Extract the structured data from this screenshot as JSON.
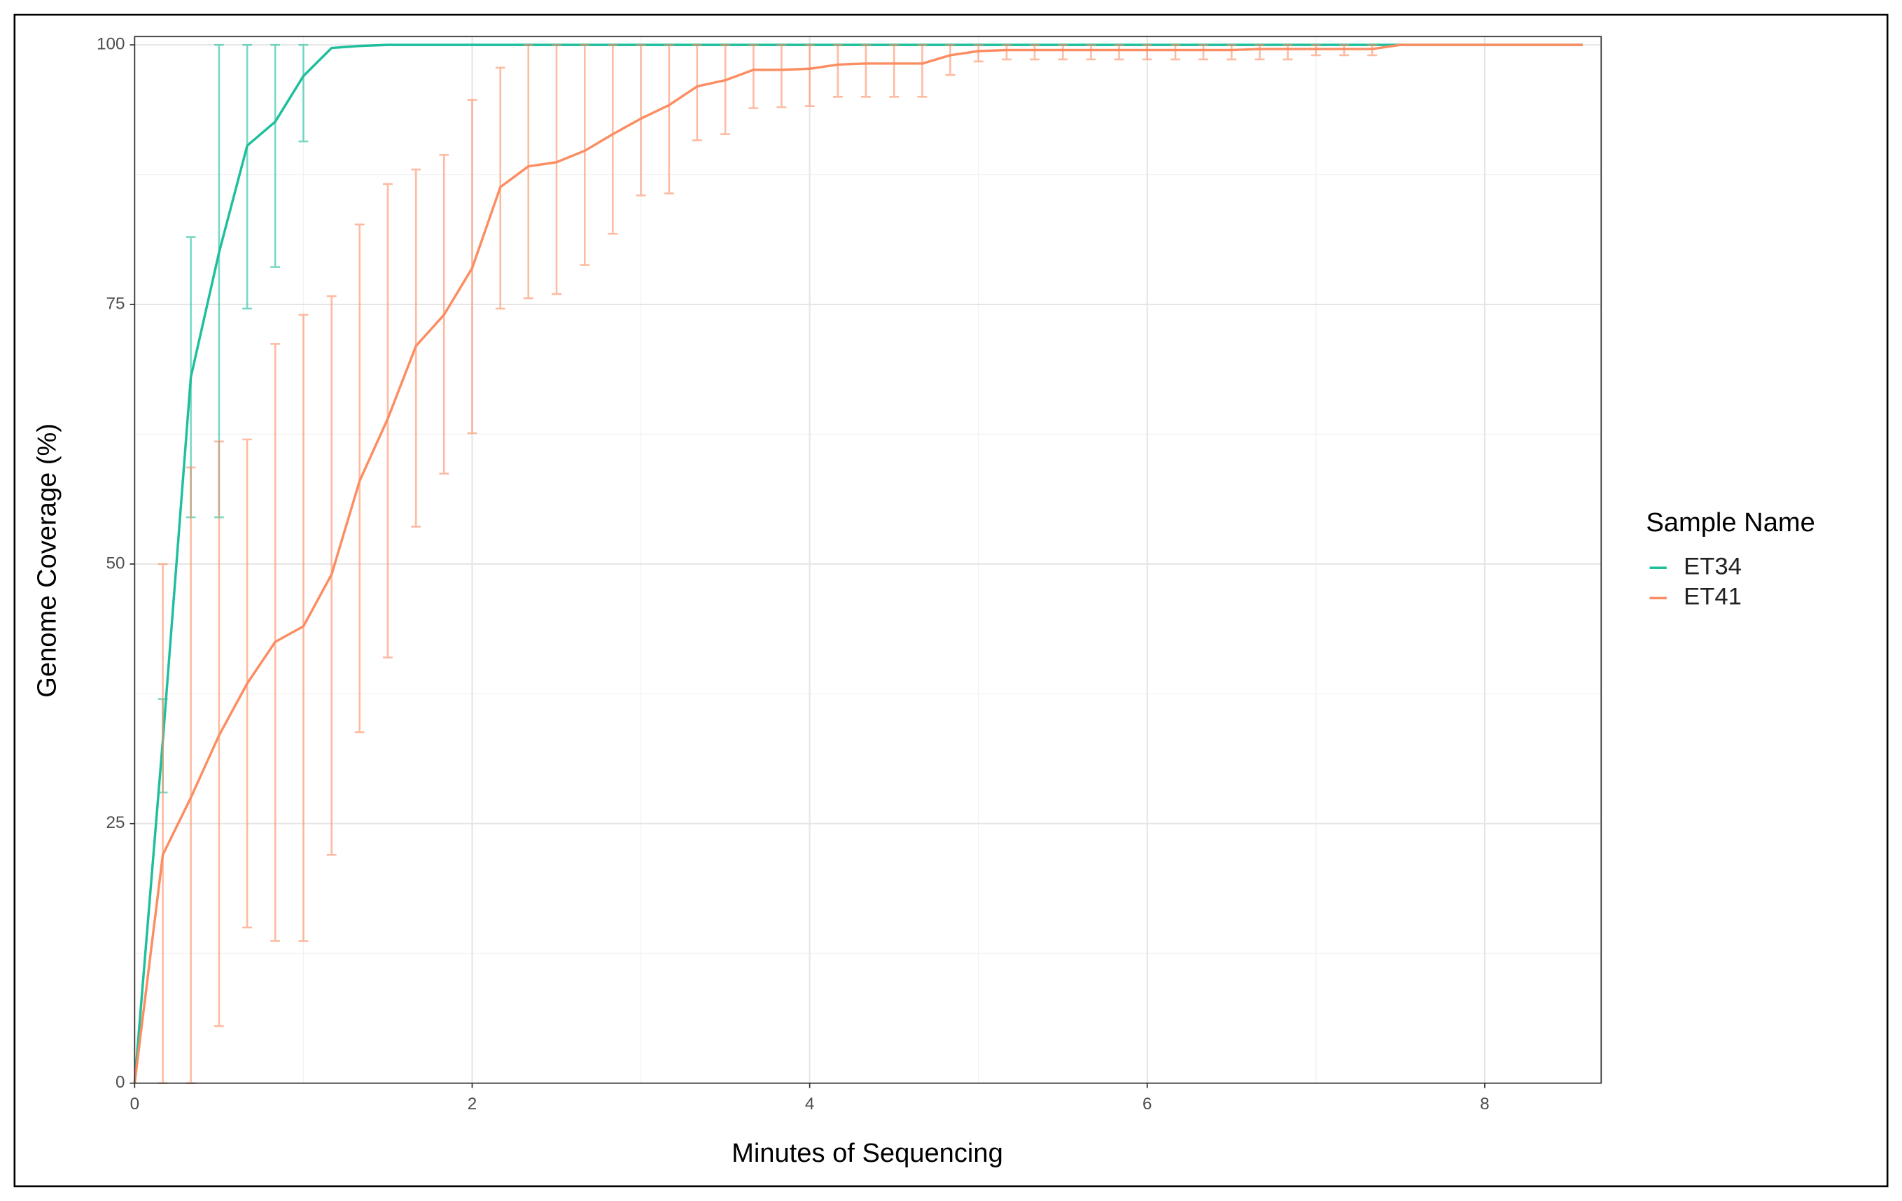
{
  "chart_data": {
    "type": "line",
    "x_label": "Minutes of Sequencing",
    "y_label": "Genome Coverage (%)",
    "legend_title": "Sample Name",
    "legend": "right",
    "grid": true,
    "xlim": [
      0,
      8.69
    ],
    "ylim": [
      0,
      100.8
    ],
    "xticks": [
      0,
      2,
      4,
      6,
      8
    ],
    "yticks": [
      0,
      25,
      50,
      75,
      100
    ],
    "x": [
      0,
      0.167,
      0.333,
      0.5,
      0.667,
      0.833,
      1,
      1.167,
      1.333,
      1.5,
      1.667,
      1.833,
      2,
      2.167,
      2.333,
      2.5,
      2.667,
      2.833,
      3,
      3.167,
      3.333,
      3.5,
      3.667,
      3.833,
      4,
      4.167,
      4.333,
      4.5,
      4.667,
      4.833,
      5,
      5.167,
      5.333,
      5.5,
      5.667,
      5.833,
      6,
      6.167,
      6.333,
      6.5,
      6.667,
      6.833,
      7,
      7.167,
      7.333,
      7.5,
      7.667,
      7.833,
      8,
      8.167,
      8.333,
      8.5,
      8.58
    ],
    "series": [
      {
        "name": "ET34",
        "color": "#1fbf9c",
        "values": [
          0,
          33,
          68,
          80,
          90.3,
          92.6,
          97,
          99.7,
          99.9,
          100,
          100,
          100,
          100,
          100,
          100,
          100,
          100,
          100,
          100,
          100,
          100,
          100,
          100,
          100,
          100,
          100,
          100,
          100,
          100,
          100,
          100,
          100,
          100,
          100,
          100,
          100,
          100,
          100,
          100,
          100,
          100,
          100,
          100,
          100,
          100,
          100,
          100,
          100,
          100,
          100,
          100,
          100,
          100
        ],
        "error_low": [
          null,
          28,
          54.5,
          54.5,
          74.6,
          78.6,
          90.7,
          null,
          null,
          null,
          null,
          null,
          null,
          null,
          null,
          null,
          null,
          null,
          null,
          null,
          null,
          null,
          null,
          null,
          null,
          null,
          null,
          null,
          null,
          null,
          null,
          null,
          null,
          null,
          null,
          null,
          null,
          null,
          null,
          null,
          null,
          null,
          null,
          null,
          null,
          null,
          null,
          null,
          null,
          null,
          null,
          null,
          null
        ],
        "error_high": [
          null,
          37,
          81.5,
          100,
          100,
          100,
          100,
          null,
          null,
          null,
          null,
          null,
          null,
          null,
          null,
          null,
          null,
          null,
          null,
          null,
          null,
          null,
          null,
          null,
          null,
          null,
          null,
          null,
          null,
          null,
          null,
          null,
          null,
          null,
          null,
          null,
          null,
          null,
          null,
          null,
          null,
          null,
          null,
          null,
          null,
          null,
          null,
          null,
          null,
          null,
          null,
          null,
          null
        ]
      },
      {
        "name": "ET41",
        "color": "#fc8d62",
        "values": [
          0,
          22,
          27.5,
          33.5,
          38.5,
          42.5,
          44,
          49,
          58,
          64,
          71,
          74,
          78.5,
          86.3,
          88.3,
          88.7,
          89.8,
          91.4,
          92.9,
          94.2,
          96,
          96.6,
          97.6,
          97.6,
          97.7,
          98.1,
          98.2,
          98.2,
          98.2,
          99,
          99.4,
          99.5,
          99.5,
          99.5,
          99.5,
          99.5,
          99.5,
          99.5,
          99.5,
          99.5,
          99.6,
          99.6,
          99.6,
          99.6,
          99.6,
          100,
          100,
          100,
          100,
          100,
          100,
          100,
          100
        ],
        "error_low": [
          null,
          0,
          0,
          5.5,
          15,
          13.7,
          13.7,
          22,
          33.8,
          41,
          53.6,
          58.7,
          62.6,
          74.6,
          75.6,
          76,
          78.8,
          81.8,
          85.5,
          85.7,
          90.8,
          91.4,
          93.9,
          94,
          94.1,
          95,
          95,
          95,
          95,
          97.1,
          98.4,
          98.6,
          98.6,
          98.6,
          98.6,
          98.6,
          98.6,
          98.6,
          98.6,
          98.6,
          98.6,
          98.6,
          99,
          99,
          99,
          null,
          null,
          null,
          null,
          null,
          null,
          null,
          null
        ],
        "error_high": [
          null,
          50,
          59.3,
          61.8,
          62,
          71.2,
          74,
          75.8,
          82.7,
          86.6,
          88,
          89.4,
          94.7,
          97.8,
          100,
          100,
          100,
          100,
          100,
          100,
          100,
          100,
          100,
          100,
          100,
          100,
          100,
          100,
          100,
          100,
          100,
          100,
          100,
          100,
          100,
          100,
          100,
          100,
          100,
          100,
          100,
          100,
          100,
          100,
          100,
          null,
          null,
          null,
          null,
          null,
          null,
          null,
          null
        ]
      }
    ]
  }
}
